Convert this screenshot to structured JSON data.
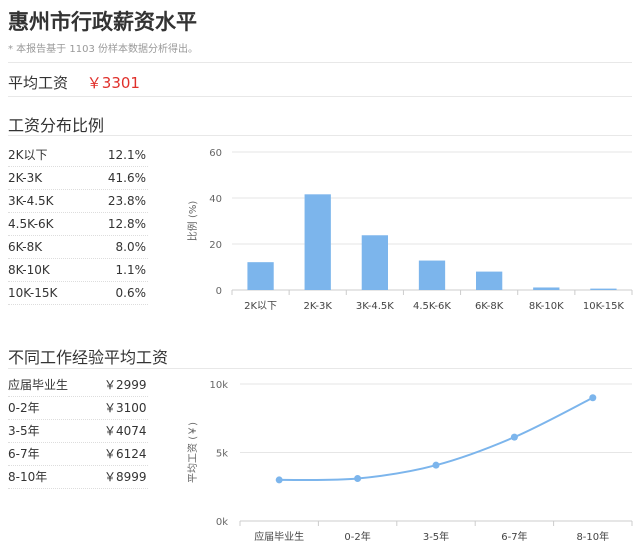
{
  "page": {
    "title": "惠州市行政薪资水平",
    "note": "* 本报告基于 1103 份样本数据分析得出。",
    "avg_label": "平均工资",
    "avg_value": "￥3301"
  },
  "section1": {
    "title": "工资分布比例",
    "rows": [
      {
        "label": "2K以下",
        "value": "12.1%"
      },
      {
        "label": "2K-3K",
        "value": "41.6%"
      },
      {
        "label": "3K-4.5K",
        "value": "23.8%"
      },
      {
        "label": "4.5K-6K",
        "value": "12.8%"
      },
      {
        "label": "6K-8K",
        "value": "8.0%"
      },
      {
        "label": "8K-10K",
        "value": "1.1%"
      },
      {
        "label": "10K-15K",
        "value": "0.6%"
      }
    ]
  },
  "section2": {
    "title": "不同工作经验平均工资",
    "rows": [
      {
        "label": "应届毕业生",
        "value": "￥2999"
      },
      {
        "label": "0-2年",
        "value": "￥3100"
      },
      {
        "label": "3-5年",
        "value": "￥4074"
      },
      {
        "label": "6-7年",
        "value": "￥6124"
      },
      {
        "label": "8-10年",
        "value": "￥8999"
      }
    ]
  },
  "chart_data": [
    {
      "type": "bar",
      "categories": [
        "2K以下",
        "2K-3K",
        "3K-4.5K",
        "4.5K-6K",
        "6K-8K",
        "8K-10K",
        "10K-15K"
      ],
      "values": [
        12.1,
        41.6,
        23.8,
        12.8,
        8.0,
        1.1,
        0.6
      ],
      "ylabel": "比例 (%)",
      "yticks": [
        "0",
        "20",
        "40",
        "60"
      ],
      "ylim": [
        0,
        60
      ],
      "grid": true,
      "color": "#7cb5ec"
    },
    {
      "type": "line",
      "categories": [
        "应届毕业生",
        "0-2年",
        "3-5年",
        "6-7年",
        "8-10年"
      ],
      "values": [
        2999,
        3100,
        4074,
        6124,
        8999
      ],
      "ylabel": "平均工资 (￥)",
      "yticks": [
        "0k",
        "5k",
        "10k"
      ],
      "ylim": [
        0,
        10000
      ],
      "grid": true,
      "color": "#7cb5ec"
    }
  ]
}
